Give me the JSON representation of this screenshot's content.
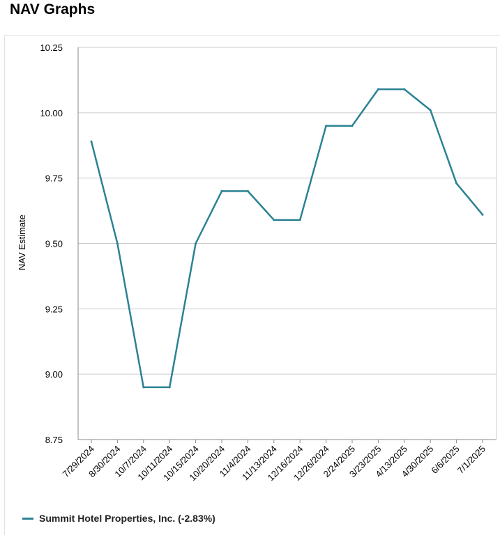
{
  "page": {
    "title": "NAV Graphs"
  },
  "colors": {
    "series": "#2b8293",
    "grid": "#cccccc",
    "axis": "#888888"
  },
  "legend": {
    "label": "Summit Hotel Properties, Inc. (-2.83%)"
  },
  "chart_data": {
    "type": "line",
    "title": "",
    "xlabel": "",
    "ylabel": "NAV Estimate",
    "ylim": [
      8.75,
      10.25
    ],
    "yticks": [
      "8.75",
      "9.00",
      "9.25",
      "9.50",
      "9.75",
      "10.00",
      "10.25"
    ],
    "grid": true,
    "legend_position": "bottom-left",
    "categories": [
      "7/29/2024",
      "8/30/2024",
      "10/7/2024",
      "10/11/2024",
      "10/15/2024",
      "10/20/2024",
      "11/4/2024",
      "11/13/2024",
      "12/16/2024",
      "12/26/2024",
      "2/24/2025",
      "3/23/2025",
      "4/13/2025",
      "4/30/2025",
      "6/6/2025",
      "7/1/2025"
    ],
    "series": [
      {
        "name": "Summit Hotel Properties, Inc. (-2.83%)",
        "values": [
          9.89,
          9.5,
          8.95,
          8.95,
          9.5,
          9.7,
          9.7,
          9.59,
          9.59,
          9.95,
          9.95,
          10.09,
          10.09,
          10.01,
          9.73,
          9.61
        ]
      }
    ]
  }
}
